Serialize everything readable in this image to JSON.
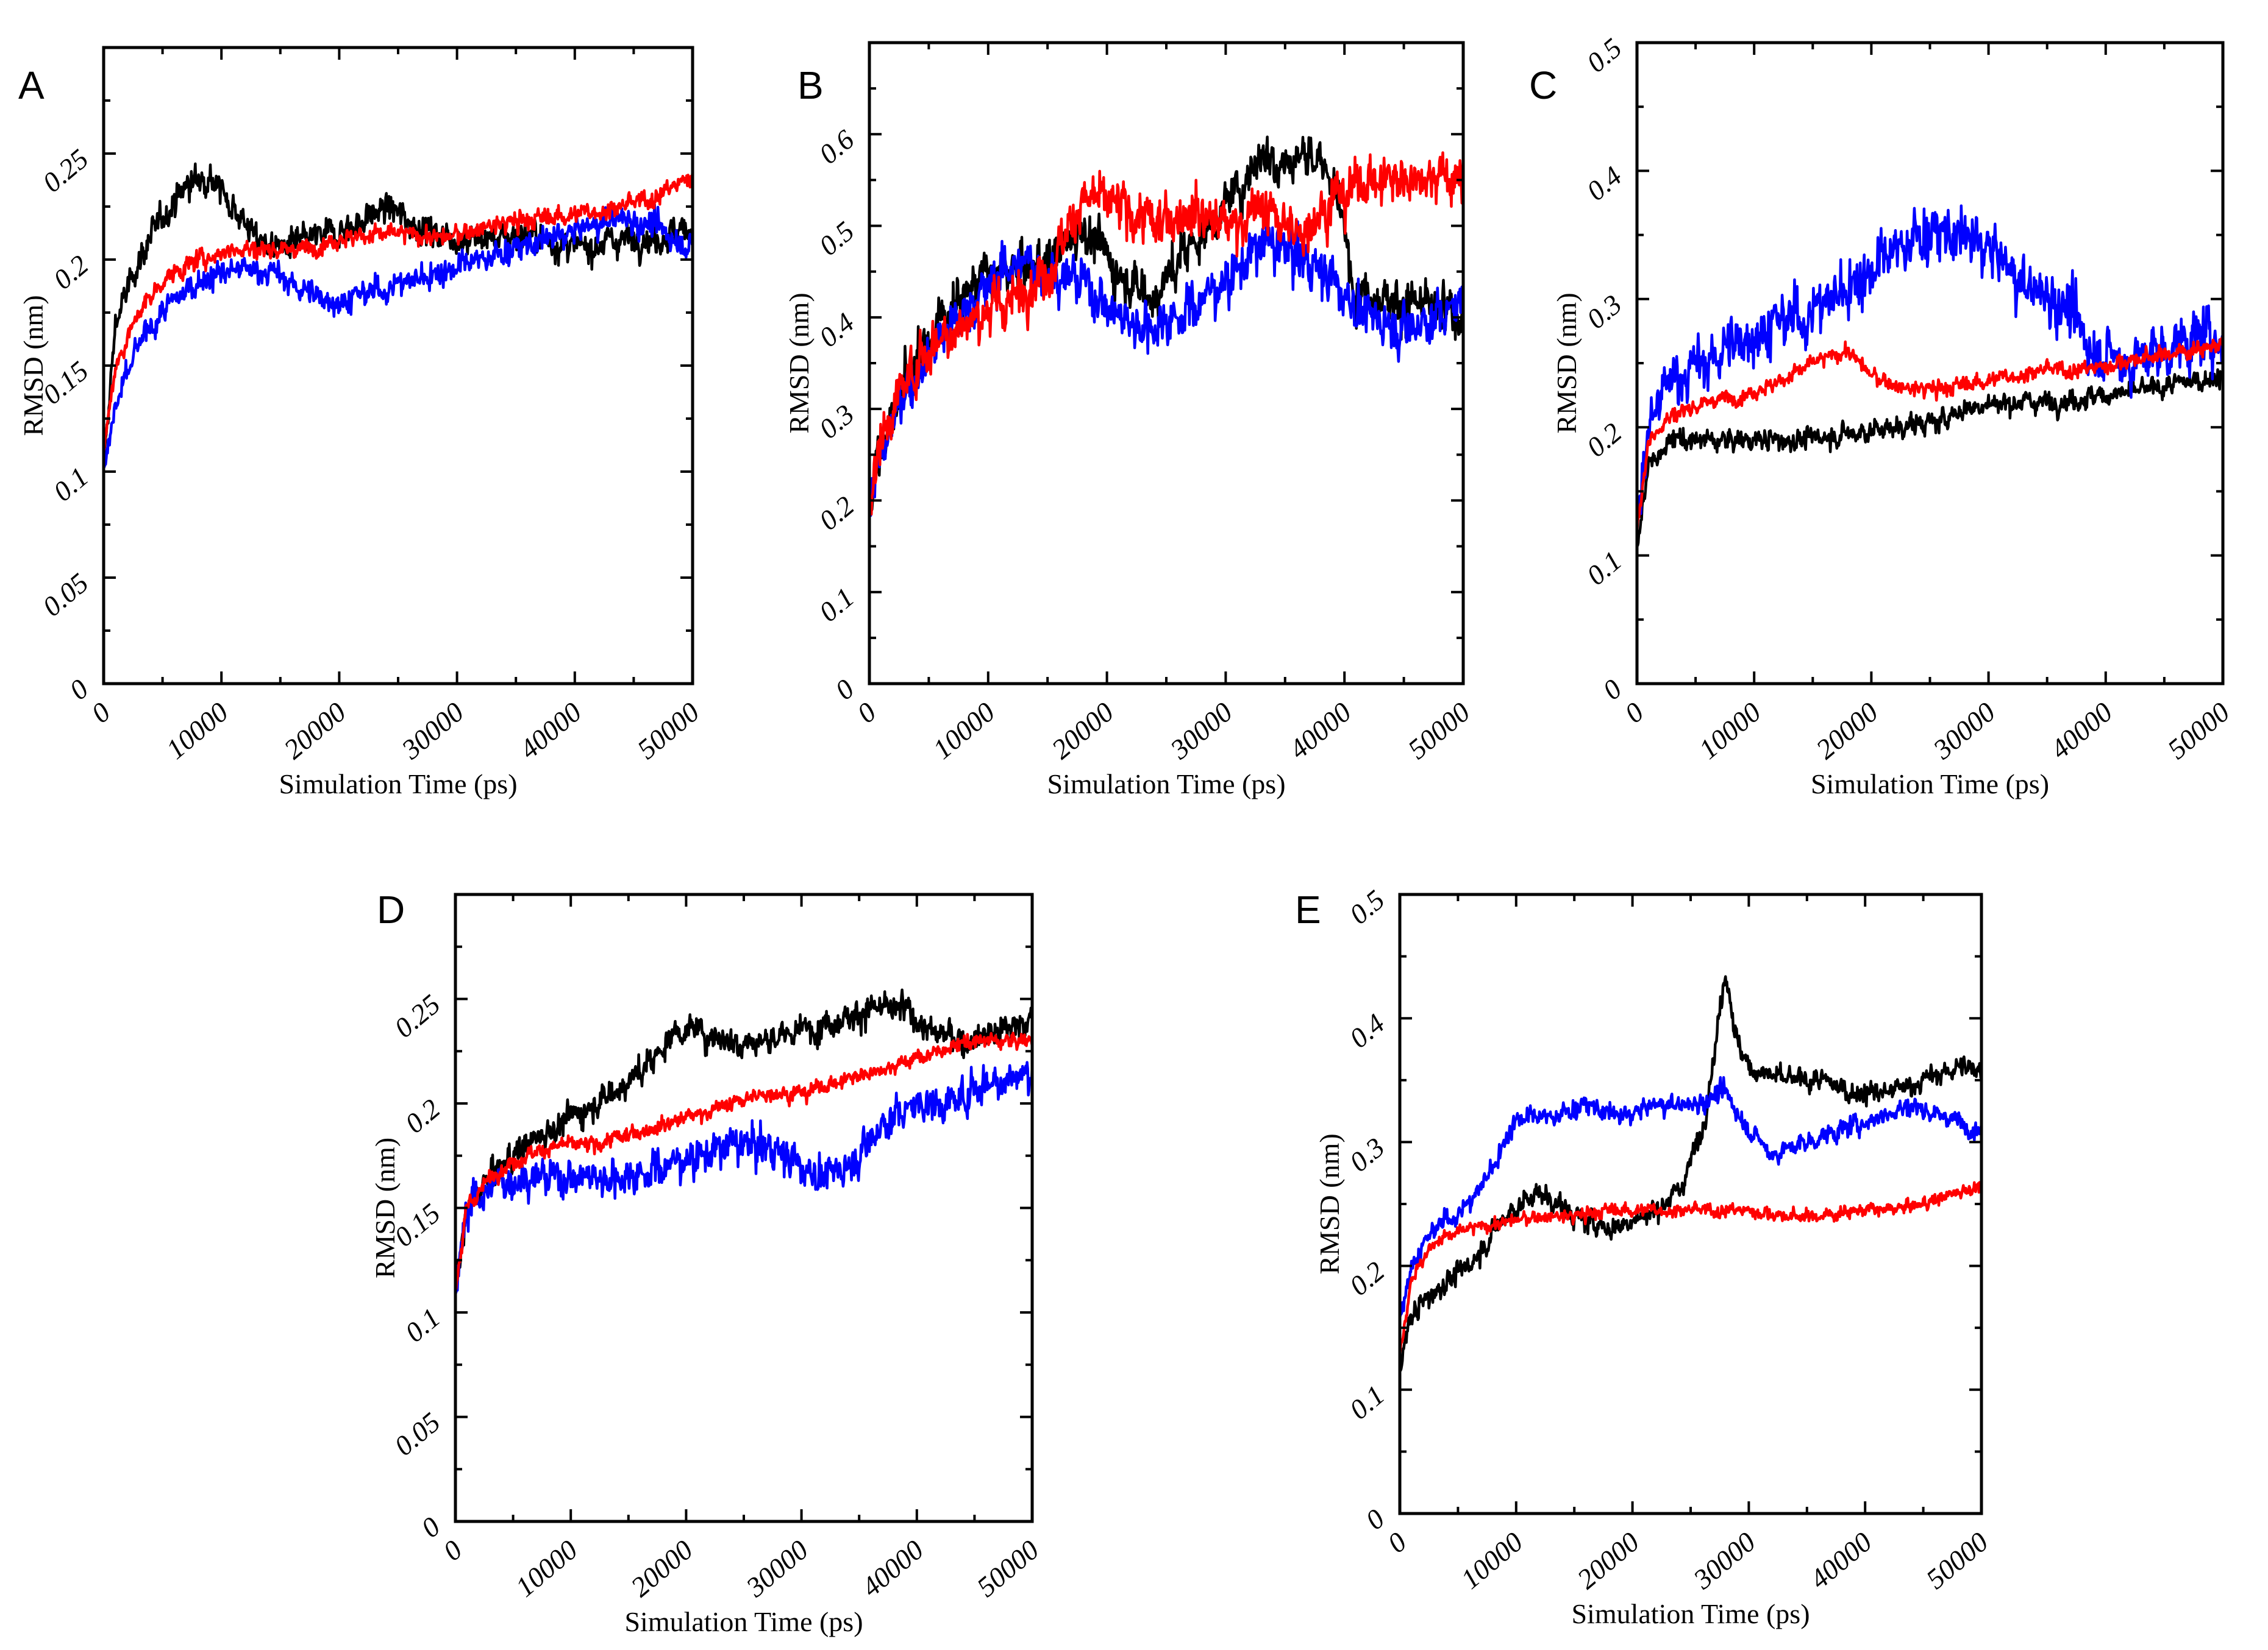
{
  "figure": {
    "series_colors": {
      "black": "#000000",
      "blue": "#0000ff",
      "red": "#ff0000"
    }
  },
  "chart_data": [
    {
      "panel": "A",
      "type": "line",
      "xlabel": "Simulation Time (ps)",
      "ylabel": "RMSD (nm)",
      "xlim": [
        0,
        50000
      ],
      "ylim": [
        0,
        0.3
      ],
      "xticks": [
        0,
        10000,
        20000,
        30000,
        40000,
        50000
      ],
      "yticks": [
        0,
        0.05,
        0.1,
        0.15,
        0.2,
        0.25
      ],
      "ytick_labels": [
        "0",
        "0.05",
        "0.1",
        "0.15",
        "0.2",
        "0.25"
      ],
      "series": [
        {
          "name": "black",
          "color": "#000000",
          "noise": 0.008,
          "x": [
            0,
            1000,
            3000,
            5000,
            7000,
            9000,
            11000,
            13000,
            15000,
            18000,
            21000,
            24000,
            27000,
            30000,
            33000,
            36000,
            40000,
            44000,
            47000,
            50000
          ],
          "y": [
            0.1,
            0.17,
            0.2,
            0.22,
            0.235,
            0.24,
            0.225,
            0.21,
            0.205,
            0.21,
            0.215,
            0.225,
            0.215,
            0.21,
            0.21,
            0.212,
            0.205,
            0.21,
            0.21,
            0.215
          ]
        },
        {
          "name": "blue",
          "color": "#0000ff",
          "noise": 0.007,
          "x": [
            0,
            1000,
            3000,
            5000,
            8000,
            11000,
            14000,
            17000,
            20000,
            23000,
            26000,
            29000,
            32000,
            35000,
            38000,
            41000,
            44000,
            47000,
            50000
          ],
          "y": [
            0.1,
            0.13,
            0.16,
            0.175,
            0.19,
            0.195,
            0.195,
            0.185,
            0.18,
            0.185,
            0.19,
            0.195,
            0.2,
            0.205,
            0.21,
            0.215,
            0.22,
            0.215,
            0.205
          ]
        },
        {
          "name": "red",
          "color": "#ff0000",
          "noise": 0.005,
          "x": [
            0,
            1000,
            3000,
            5000,
            8000,
            11000,
            14000,
            17000,
            20000,
            23000,
            26000,
            29000,
            32000,
            35000,
            38000,
            41000,
            44000,
            47000,
            50000
          ],
          "y": [
            0.11,
            0.15,
            0.175,
            0.19,
            0.2,
            0.205,
            0.205,
            0.205,
            0.21,
            0.212,
            0.212,
            0.21,
            0.215,
            0.218,
            0.22,
            0.222,
            0.225,
            0.23,
            0.24
          ]
        }
      ]
    },
    {
      "panel": "B",
      "type": "line",
      "xlabel": "Simulation Time (ps)",
      "ylabel": "RMSD (nm)",
      "xlim": [
        0,
        50000
      ],
      "ylim": [
        0,
        0.7
      ],
      "xticks": [
        0,
        10000,
        20000,
        30000,
        40000,
        50000
      ],
      "yticks": [
        0,
        0.1,
        0.2,
        0.3,
        0.4,
        0.5,
        0.6
      ],
      "ytick_labels": [
        "0",
        "0.1",
        "0.2",
        "0.3",
        "0.4",
        "0.5",
        "0.6"
      ],
      "series": [
        {
          "name": "black",
          "color": "#000000",
          "noise": 0.03,
          "x": [
            0,
            1000,
            3000,
            6000,
            9000,
            12000,
            15000,
            18000,
            21000,
            24000,
            27000,
            30000,
            33000,
            35000,
            37000,
            39000,
            41000,
            44000,
            47000,
            50000
          ],
          "y": [
            0.2,
            0.26,
            0.33,
            0.4,
            0.44,
            0.45,
            0.46,
            0.5,
            0.45,
            0.42,
            0.48,
            0.52,
            0.58,
            0.57,
            0.58,
            0.55,
            0.43,
            0.42,
            0.41,
            0.4
          ]
        },
        {
          "name": "blue",
          "color": "#0000ff",
          "noise": 0.03,
          "x": [
            0,
            1000,
            3000,
            6000,
            9000,
            12000,
            15000,
            18000,
            21000,
            24000,
            27000,
            30000,
            33000,
            36000,
            39000,
            42000,
            45000,
            48000,
            50000
          ],
          "y": [
            0.2,
            0.25,
            0.32,
            0.38,
            0.42,
            0.46,
            0.45,
            0.44,
            0.4,
            0.39,
            0.41,
            0.44,
            0.48,
            0.47,
            0.44,
            0.4,
            0.39,
            0.4,
            0.42
          ]
        },
        {
          "name": "red",
          "color": "#ff0000",
          "noise": 0.03,
          "x": [
            0,
            1000,
            3000,
            6000,
            9000,
            12000,
            15000,
            18000,
            21000,
            24000,
            27000,
            30000,
            33000,
            36000,
            39000,
            42000,
            45000,
            48000,
            50000
          ],
          "y": [
            0.2,
            0.27,
            0.33,
            0.38,
            0.4,
            0.42,
            0.45,
            0.53,
            0.52,
            0.5,
            0.52,
            0.5,
            0.52,
            0.49,
            0.53,
            0.55,
            0.55,
            0.56,
            0.54
          ]
        }
      ]
    },
    {
      "panel": "C",
      "type": "line",
      "xlabel": "Simulation Time (ps)",
      "ylabel": "RMSD (nm)",
      "xlim": [
        0,
        50000
      ],
      "ylim": [
        0,
        0.5
      ],
      "xticks": [
        0,
        10000,
        20000,
        30000,
        40000,
        50000
      ],
      "yticks": [
        0,
        0.1,
        0.2,
        0.3,
        0.4,
        0.5
      ],
      "ytick_labels": [
        "0",
        "0.1",
        "0.2",
        "0.3",
        "0.4",
        "0.5"
      ],
      "series": [
        {
          "name": "black",
          "color": "#000000",
          "noise": 0.009,
          "x": [
            0,
            1000,
            3000,
            6000,
            10000,
            14000,
            18000,
            22000,
            26000,
            28000,
            32000,
            36000,
            40000,
            44000,
            47000,
            50000
          ],
          "y": [
            0.11,
            0.17,
            0.19,
            0.19,
            0.19,
            0.19,
            0.195,
            0.2,
            0.205,
            0.215,
            0.22,
            0.22,
            0.225,
            0.23,
            0.235,
            0.24
          ]
        },
        {
          "name": "blue",
          "color": "#0000ff",
          "noise": 0.025,
          "x": [
            0,
            1000,
            3000,
            6000,
            9000,
            12000,
            15000,
            18000,
            21000,
            24000,
            27000,
            30000,
            33000,
            36000,
            39000,
            42000,
            45000,
            48000,
            50000
          ],
          "y": [
            0.12,
            0.2,
            0.24,
            0.25,
            0.27,
            0.28,
            0.29,
            0.31,
            0.33,
            0.35,
            0.35,
            0.34,
            0.31,
            0.3,
            0.26,
            0.25,
            0.26,
            0.27,
            0.27
          ]
        },
        {
          "name": "red",
          "color": "#ff0000",
          "noise": 0.007,
          "x": [
            0,
            1000,
            3000,
            6000,
            9000,
            12000,
            15000,
            18000,
            20000,
            23000,
            26000,
            29000,
            32000,
            35000,
            38000,
            41000,
            44000,
            47000,
            50000
          ],
          "y": [
            0.12,
            0.19,
            0.21,
            0.22,
            0.225,
            0.235,
            0.25,
            0.26,
            0.24,
            0.23,
            0.23,
            0.235,
            0.24,
            0.245,
            0.245,
            0.25,
            0.255,
            0.26,
            0.265
          ]
        }
      ]
    },
    {
      "panel": "D",
      "type": "line",
      "xlabel": "Simulation Time (ps)",
      "ylabel": "RMSD (nm)",
      "xlim": [
        0,
        50000
      ],
      "ylim": [
        0,
        0.3
      ],
      "xticks": [
        0,
        10000,
        20000,
        30000,
        40000,
        50000
      ],
      "yticks": [
        0,
        0.05,
        0.1,
        0.15,
        0.2,
        0.25
      ],
      "ytick_labels": [
        "0",
        "0.05",
        "0.1",
        "0.15",
        "0.2",
        "0.25"
      ],
      "series": [
        {
          "name": "black",
          "color": "#000000",
          "noise": 0.008,
          "x": [
            0,
            1000,
            3000,
            6000,
            9000,
            12000,
            15000,
            17000,
            19000,
            21000,
            24000,
            27000,
            30000,
            33000,
            36000,
            39000,
            41000,
            44000,
            47000,
            50000
          ],
          "y": [
            0.11,
            0.15,
            0.165,
            0.18,
            0.19,
            0.2,
            0.21,
            0.22,
            0.235,
            0.235,
            0.23,
            0.23,
            0.235,
            0.24,
            0.245,
            0.245,
            0.235,
            0.23,
            0.235,
            0.24
          ]
        },
        {
          "name": "blue",
          "color": "#0000ff",
          "noise": 0.01,
          "x": [
            0,
            1000,
            3000,
            6000,
            9000,
            12000,
            15000,
            18000,
            21000,
            24000,
            27000,
            30000,
            32000,
            34000,
            37000,
            40000,
            43000,
            46000,
            50000
          ],
          "y": [
            0.11,
            0.15,
            0.16,
            0.165,
            0.165,
            0.165,
            0.165,
            0.17,
            0.175,
            0.18,
            0.18,
            0.17,
            0.165,
            0.17,
            0.19,
            0.2,
            0.2,
            0.21,
            0.215
          ]
        },
        {
          "name": "red",
          "color": "#ff0000",
          "noise": 0.004,
          "x": [
            0,
            1000,
            3000,
            6000,
            9000,
            12000,
            15000,
            18000,
            21000,
            24000,
            27000,
            30000,
            33000,
            36000,
            39000,
            42000,
            45000,
            48000,
            50000
          ],
          "y": [
            0.11,
            0.15,
            0.165,
            0.175,
            0.18,
            0.18,
            0.185,
            0.19,
            0.195,
            0.2,
            0.205,
            0.205,
            0.21,
            0.215,
            0.22,
            0.225,
            0.23,
            0.23,
            0.23
          ]
        }
      ]
    },
    {
      "panel": "E",
      "type": "line",
      "xlabel": "Simulation Time (ps)",
      "ylabel": "RMSD (nm)",
      "xlim": [
        0,
        50000
      ],
      "ylim": [
        0,
        0.5
      ],
      "xticks": [
        0,
        10000,
        20000,
        30000,
        40000,
        50000
      ],
      "yticks": [
        0,
        0.1,
        0.2,
        0.3,
        0.4,
        0.5
      ],
      "ytick_labels": [
        "0",
        "0.1",
        "0.2",
        "0.3",
        "0.4",
        "0.5"
      ],
      "series": [
        {
          "name": "black",
          "color": "#000000",
          "noise": 0.01,
          "x": [
            0,
            1000,
            3000,
            6000,
            9000,
            12000,
            15000,
            18000,
            21000,
            24000,
            26000,
            27000,
            28000,
            29000,
            30000,
            33000,
            36000,
            39000,
            42000,
            45000,
            48000,
            50000
          ],
          "y": [
            0.12,
            0.16,
            0.18,
            0.2,
            0.24,
            0.26,
            0.24,
            0.23,
            0.24,
            0.26,
            0.31,
            0.37,
            0.44,
            0.38,
            0.36,
            0.35,
            0.35,
            0.34,
            0.34,
            0.35,
            0.36,
            0.36
          ]
        },
        {
          "name": "blue",
          "color": "#0000ff",
          "noise": 0.009,
          "x": [
            0,
            1000,
            3000,
            6000,
            8000,
            10000,
            13000,
            16000,
            19000,
            22000,
            25000,
            28000,
            30000,
            32000,
            35000,
            38000,
            41000,
            44000,
            47000,
            50000
          ],
          "y": [
            0.16,
            0.2,
            0.23,
            0.25,
            0.28,
            0.32,
            0.32,
            0.33,
            0.32,
            0.33,
            0.33,
            0.34,
            0.31,
            0.29,
            0.3,
            0.31,
            0.32,
            0.33,
            0.32,
            0.31
          ]
        },
        {
          "name": "red",
          "color": "#ff0000",
          "noise": 0.006,
          "x": [
            0,
            1000,
            3000,
            6000,
            9000,
            12000,
            15000,
            18000,
            21000,
            24000,
            27000,
            30000,
            33000,
            36000,
            39000,
            42000,
            45000,
            48000,
            50000
          ],
          "y": [
            0.13,
            0.19,
            0.22,
            0.23,
            0.235,
            0.24,
            0.24,
            0.245,
            0.245,
            0.245,
            0.245,
            0.245,
            0.24,
            0.24,
            0.245,
            0.245,
            0.25,
            0.26,
            0.265
          ]
        }
      ]
    }
  ]
}
